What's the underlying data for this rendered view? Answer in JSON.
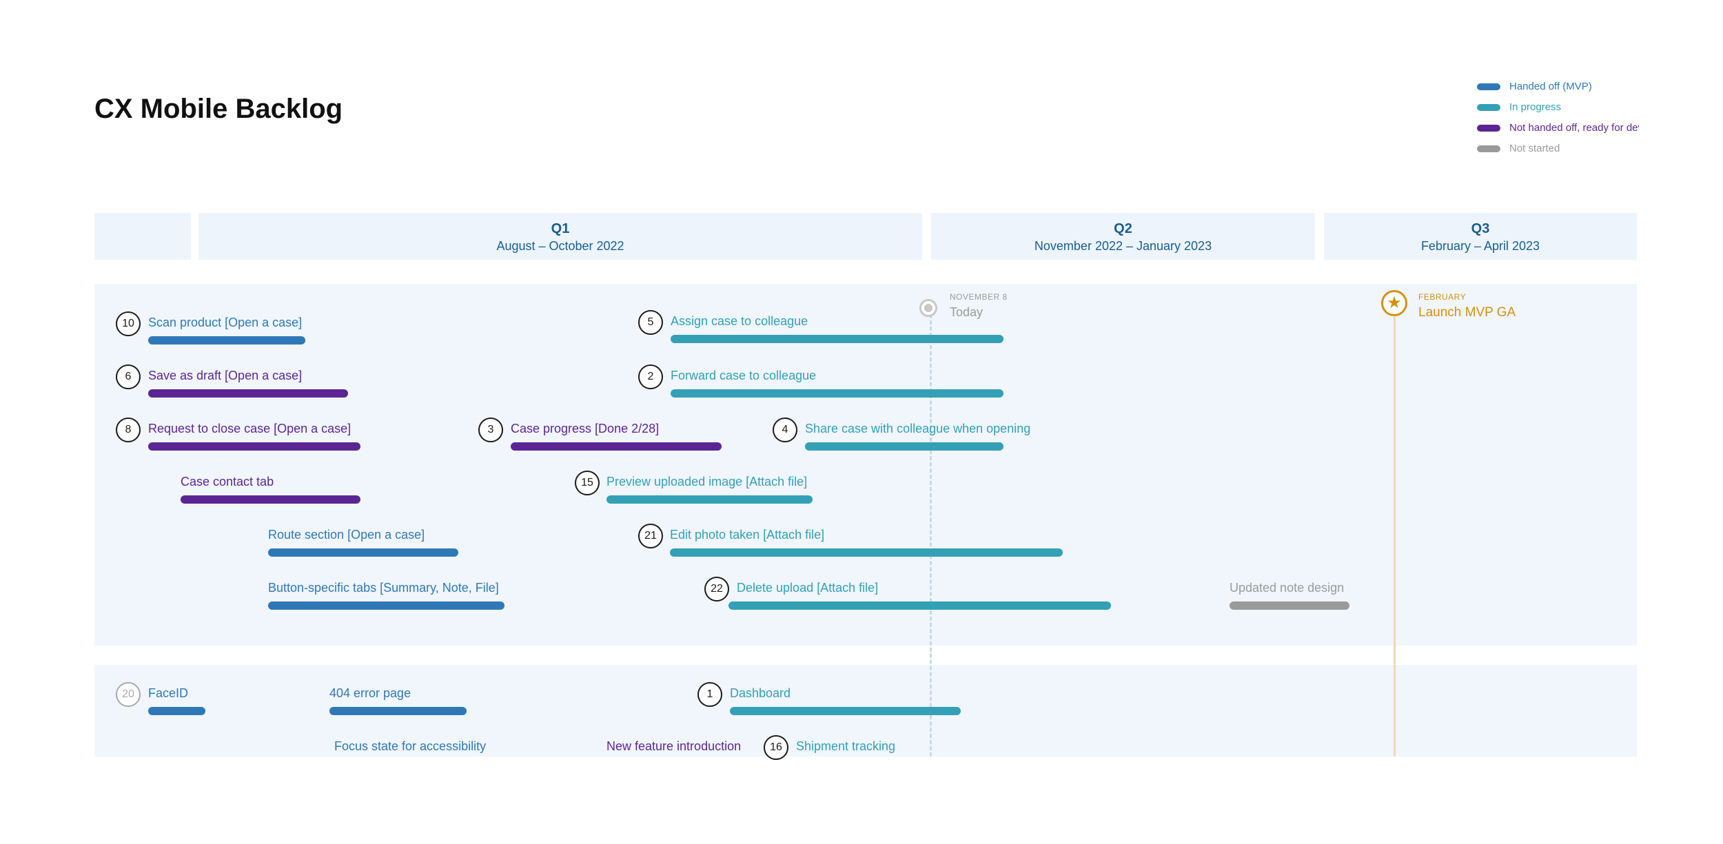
{
  "page": {
    "title": "CX Mobile Backlog"
  },
  "colors": {
    "handed_off": "#2f78b7",
    "in_progress": "#33a0b6",
    "not_handed_off": "#5c2594",
    "not_started": "#9a9a9a",
    "launch": "#d4900f"
  },
  "legend": [
    {
      "label": "Handed off (MVP)",
      "status": "handed_off"
    },
    {
      "label": "In progress",
      "status": "in_progress"
    },
    {
      "label": "Not handed off, ready for dev",
      "status": "not_handed_off"
    },
    {
      "label": "Not started",
      "status": "not_started"
    }
  ],
  "quarters": [
    {
      "name": "",
      "range": ""
    },
    {
      "name": "Q1",
      "range": "August – October 2022"
    },
    {
      "name": "Q2",
      "range": "November 2022 – January 2023"
    },
    {
      "name": "Q3",
      "range": "February – April 2023"
    }
  ],
  "milestones": {
    "today": {
      "date": "NOVEMBER 8",
      "label": "Today"
    },
    "launch": {
      "date": "FEBRUARY",
      "label": "Launch MVP GA"
    }
  },
  "items": [
    {
      "id": "scan-product",
      "badge": "10",
      "label": "Scan product  [Open a case]",
      "status": "handed_off"
    },
    {
      "id": "save-as-draft",
      "badge": "6",
      "label": "Save as draft  [Open a case]",
      "status": "not_handed_off"
    },
    {
      "id": "request-to-close-case",
      "badge": "8",
      "label": "Request to close case  [Open a case]",
      "status": "not_handed_off"
    },
    {
      "id": "case-contact-tab",
      "badge": "",
      "label": "Case contact tab",
      "status": "not_handed_off"
    },
    {
      "id": "route-section",
      "badge": "",
      "label": "Route section  [Open a case]",
      "status": "handed_off"
    },
    {
      "id": "button-specific-tabs",
      "badge": "",
      "label": "Button-specific tabs  [Summary, Note, File]",
      "status": "handed_off"
    },
    {
      "id": "case-progress",
      "badge": "3",
      "label": "Case progress  [Done 2/28]",
      "status": "not_handed_off"
    },
    {
      "id": "assign-case",
      "badge": "5",
      "label": "Assign case to colleague",
      "status": "in_progress"
    },
    {
      "id": "forward-case",
      "badge": "2",
      "label": "Forward case to colleague",
      "status": "in_progress"
    },
    {
      "id": "share-case",
      "badge": "4",
      "label": "Share case with colleague when opening",
      "status": "in_progress"
    },
    {
      "id": "preview-uploaded-image",
      "badge": "15",
      "label": "Preview uploaded image  [Attach file]",
      "status": "in_progress"
    },
    {
      "id": "edit-photo-taken",
      "badge": "21",
      "label": "Edit photo taken  [Attach file]",
      "status": "in_progress"
    },
    {
      "id": "delete-upload",
      "badge": "22",
      "label": "Delete upload  [Attach file]",
      "status": "in_progress"
    },
    {
      "id": "updated-note-design",
      "badge": "",
      "label": "Updated note design",
      "status": "not_started"
    },
    {
      "id": "face-id",
      "badge": "20",
      "label": "FaceID",
      "status": "handed_off",
      "badge_muted": true
    },
    {
      "id": "error-page-404",
      "badge": "",
      "label": "404 error page",
      "status": "handed_off"
    },
    {
      "id": "dashboard",
      "badge": "1",
      "label": "Dashboard",
      "status": "in_progress"
    },
    {
      "id": "focus-state",
      "badge": "",
      "label": "Focus state for accessibility",
      "status": "handed_off",
      "bar": false
    },
    {
      "id": "new-feature-intro",
      "badge": "",
      "label": "New feature introduction",
      "status": "not_handed_off",
      "bar": false
    },
    {
      "id": "shipment-tracking",
      "badge": "16",
      "label": "Shipment tracking",
      "status": "in_progress",
      "bar": false
    }
  ]
}
